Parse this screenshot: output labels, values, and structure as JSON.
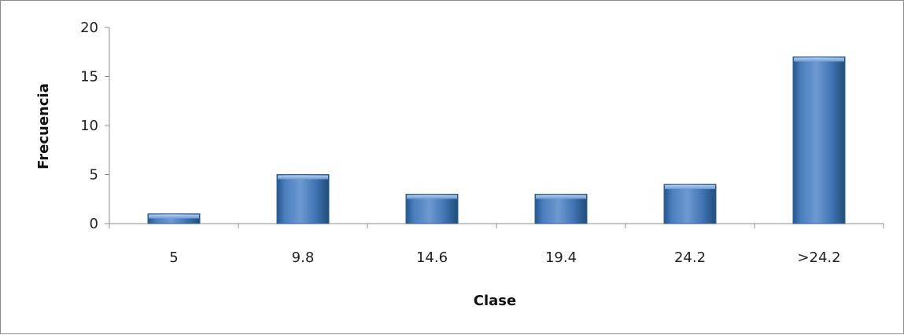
{
  "chart_data": {
    "type": "bar",
    "title": "",
    "xlabel": "Clase",
    "ylabel": "Frecuencia",
    "categories": [
      "5",
      "9.8",
      "14.6",
      "19.4",
      "24.2",
      ">24.2"
    ],
    "values": [
      1,
      5,
      3,
      3,
      4,
      17
    ],
    "ylim": [
      0,
      20
    ],
    "yticks": [
      "0",
      "5",
      "10",
      "15",
      "20"
    ],
    "grid": false,
    "legend": "none",
    "colors": {
      "bar": "#4a7ebb",
      "bar_light": "#8db3e2",
      "bar_dark": "#1f4e79"
    }
  }
}
